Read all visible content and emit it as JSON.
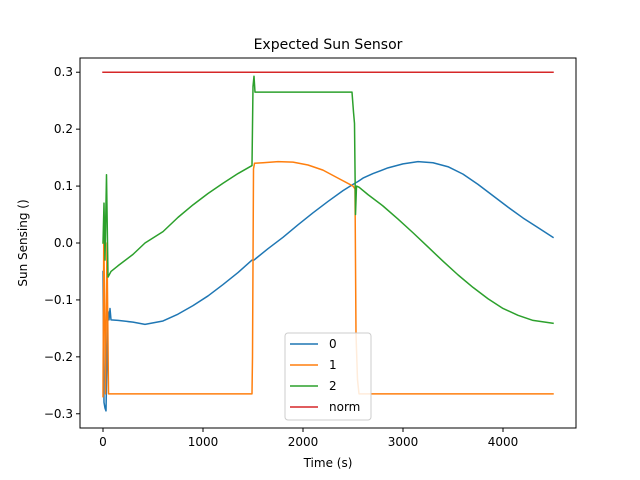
{
  "chart_data": {
    "type": "line",
    "title": "Expected Sun Sensor",
    "xlabel": "Time (s)",
    "ylabel": "Sun Sensing ()",
    "xlim": [
      -230,
      4730
    ],
    "ylim": [
      -0.325,
      0.325
    ],
    "xticks": [
      0,
      1000,
      2000,
      3000,
      4000
    ],
    "yticks": [
      -0.3,
      -0.2,
      -0.1,
      0.0,
      0.1,
      0.2,
      0.3
    ],
    "xtick_labels": [
      "0",
      "1000",
      "2000",
      "3000",
      "4000"
    ],
    "ytick_labels": [
      "−0.3",
      "−0.2",
      "−0.1",
      "0.0",
      "0.1",
      "0.2",
      "0.3"
    ],
    "grid": false,
    "legend_position": "lower-center",
    "series": [
      {
        "name": "0",
        "color": "#1f77b4",
        "points": [
          [
            0,
            -0.05
          ],
          [
            5,
            -0.2
          ],
          [
            10,
            -0.28
          ],
          [
            20,
            -0.29
          ],
          [
            30,
            -0.295
          ],
          [
            40,
            -0.2
          ],
          [
            50,
            -0.12
          ],
          [
            60,
            -0.135
          ],
          [
            70,
            -0.115
          ],
          [
            80,
            -0.135
          ],
          [
            150,
            -0.136
          ],
          [
            300,
            -0.139
          ],
          [
            420,
            -0.143
          ],
          [
            600,
            -0.137
          ],
          [
            750,
            -0.125
          ],
          [
            900,
            -0.11
          ],
          [
            1050,
            -0.093
          ],
          [
            1200,
            -0.073
          ],
          [
            1350,
            -0.052
          ],
          [
            1490,
            -0.03
          ],
          [
            1510,
            -0.03
          ],
          [
            1530,
            -0.027
          ],
          [
            1650,
            -0.01
          ],
          [
            1800,
            0.01
          ],
          [
            1950,
            0.032
          ],
          [
            2100,
            0.053
          ],
          [
            2250,
            0.073
          ],
          [
            2400,
            0.092
          ],
          [
            2500,
            0.103
          ],
          [
            2550,
            0.108
          ],
          [
            2600,
            0.114
          ],
          [
            2700,
            0.122
          ],
          [
            2850,
            0.132
          ],
          [
            3000,
            0.139
          ],
          [
            3150,
            0.143
          ],
          [
            3300,
            0.141
          ],
          [
            3450,
            0.134
          ],
          [
            3600,
            0.121
          ],
          [
            3750,
            0.103
          ],
          [
            3900,
            0.083
          ],
          [
            4050,
            0.063
          ],
          [
            4200,
            0.044
          ],
          [
            4350,
            0.027
          ],
          [
            4500,
            0.01
          ]
        ]
      },
      {
        "name": "1",
        "color": "#ff7f0e",
        "points": [
          [
            0,
            -0.27
          ],
          [
            8,
            0.02
          ],
          [
            15,
            -0.1
          ],
          [
            25,
            -0.265
          ],
          [
            40,
            0.0
          ],
          [
            55,
            -0.265
          ],
          [
            200,
            -0.265
          ],
          [
            600,
            -0.265
          ],
          [
            1000,
            -0.265
          ],
          [
            1490,
            -0.265
          ],
          [
            1495,
            -0.2
          ],
          [
            1505,
            0.13
          ],
          [
            1515,
            0.14
          ],
          [
            1600,
            0.141
          ],
          [
            1750,
            0.143
          ],
          [
            1900,
            0.142
          ],
          [
            2050,
            0.137
          ],
          [
            2200,
            0.128
          ],
          [
            2350,
            0.114
          ],
          [
            2500,
            0.1
          ],
          [
            2520,
            0.095
          ],
          [
            2530,
            -0.16
          ],
          [
            2545,
            -0.24
          ],
          [
            2560,
            -0.265
          ],
          [
            3000,
            -0.265
          ],
          [
            3500,
            -0.265
          ],
          [
            4000,
            -0.265
          ],
          [
            4500,
            -0.265
          ]
        ]
      },
      {
        "name": "2",
        "color": "#2ca02c",
        "points": [
          [
            0,
            0.0
          ],
          [
            10,
            0.07
          ],
          [
            20,
            -0.03
          ],
          [
            35,
            0.12
          ],
          [
            50,
            -0.06
          ],
          [
            80,
            -0.05
          ],
          [
            150,
            -0.04
          ],
          [
            300,
            -0.02
          ],
          [
            420,
            0.0
          ],
          [
            600,
            0.02
          ],
          [
            750,
            0.045
          ],
          [
            900,
            0.067
          ],
          [
            1050,
            0.087
          ],
          [
            1200,
            0.105
          ],
          [
            1350,
            0.122
          ],
          [
            1490,
            0.136
          ],
          [
            1500,
            0.275
          ],
          [
            1510,
            0.293
          ],
          [
            1520,
            0.265
          ],
          [
            1700,
            0.265
          ],
          [
            2000,
            0.265
          ],
          [
            2300,
            0.265
          ],
          [
            2490,
            0.265
          ],
          [
            2505,
            0.23
          ],
          [
            2515,
            0.21
          ],
          [
            2525,
            0.05
          ],
          [
            2535,
            0.1
          ],
          [
            2560,
            0.098
          ],
          [
            2650,
            0.085
          ],
          [
            2800,
            0.065
          ],
          [
            2950,
            0.042
          ],
          [
            3100,
            0.018
          ],
          [
            3250,
            -0.007
          ],
          [
            3400,
            -0.032
          ],
          [
            3550,
            -0.056
          ],
          [
            3700,
            -0.078
          ],
          [
            3850,
            -0.098
          ],
          [
            4000,
            -0.115
          ],
          [
            4150,
            -0.127
          ],
          [
            4300,
            -0.136
          ],
          [
            4500,
            -0.141
          ]
        ]
      },
      {
        "name": "norm",
        "color": "#d62728",
        "points": [
          [
            0,
            0.3
          ],
          [
            4500,
            0.3
          ]
        ]
      }
    ]
  }
}
